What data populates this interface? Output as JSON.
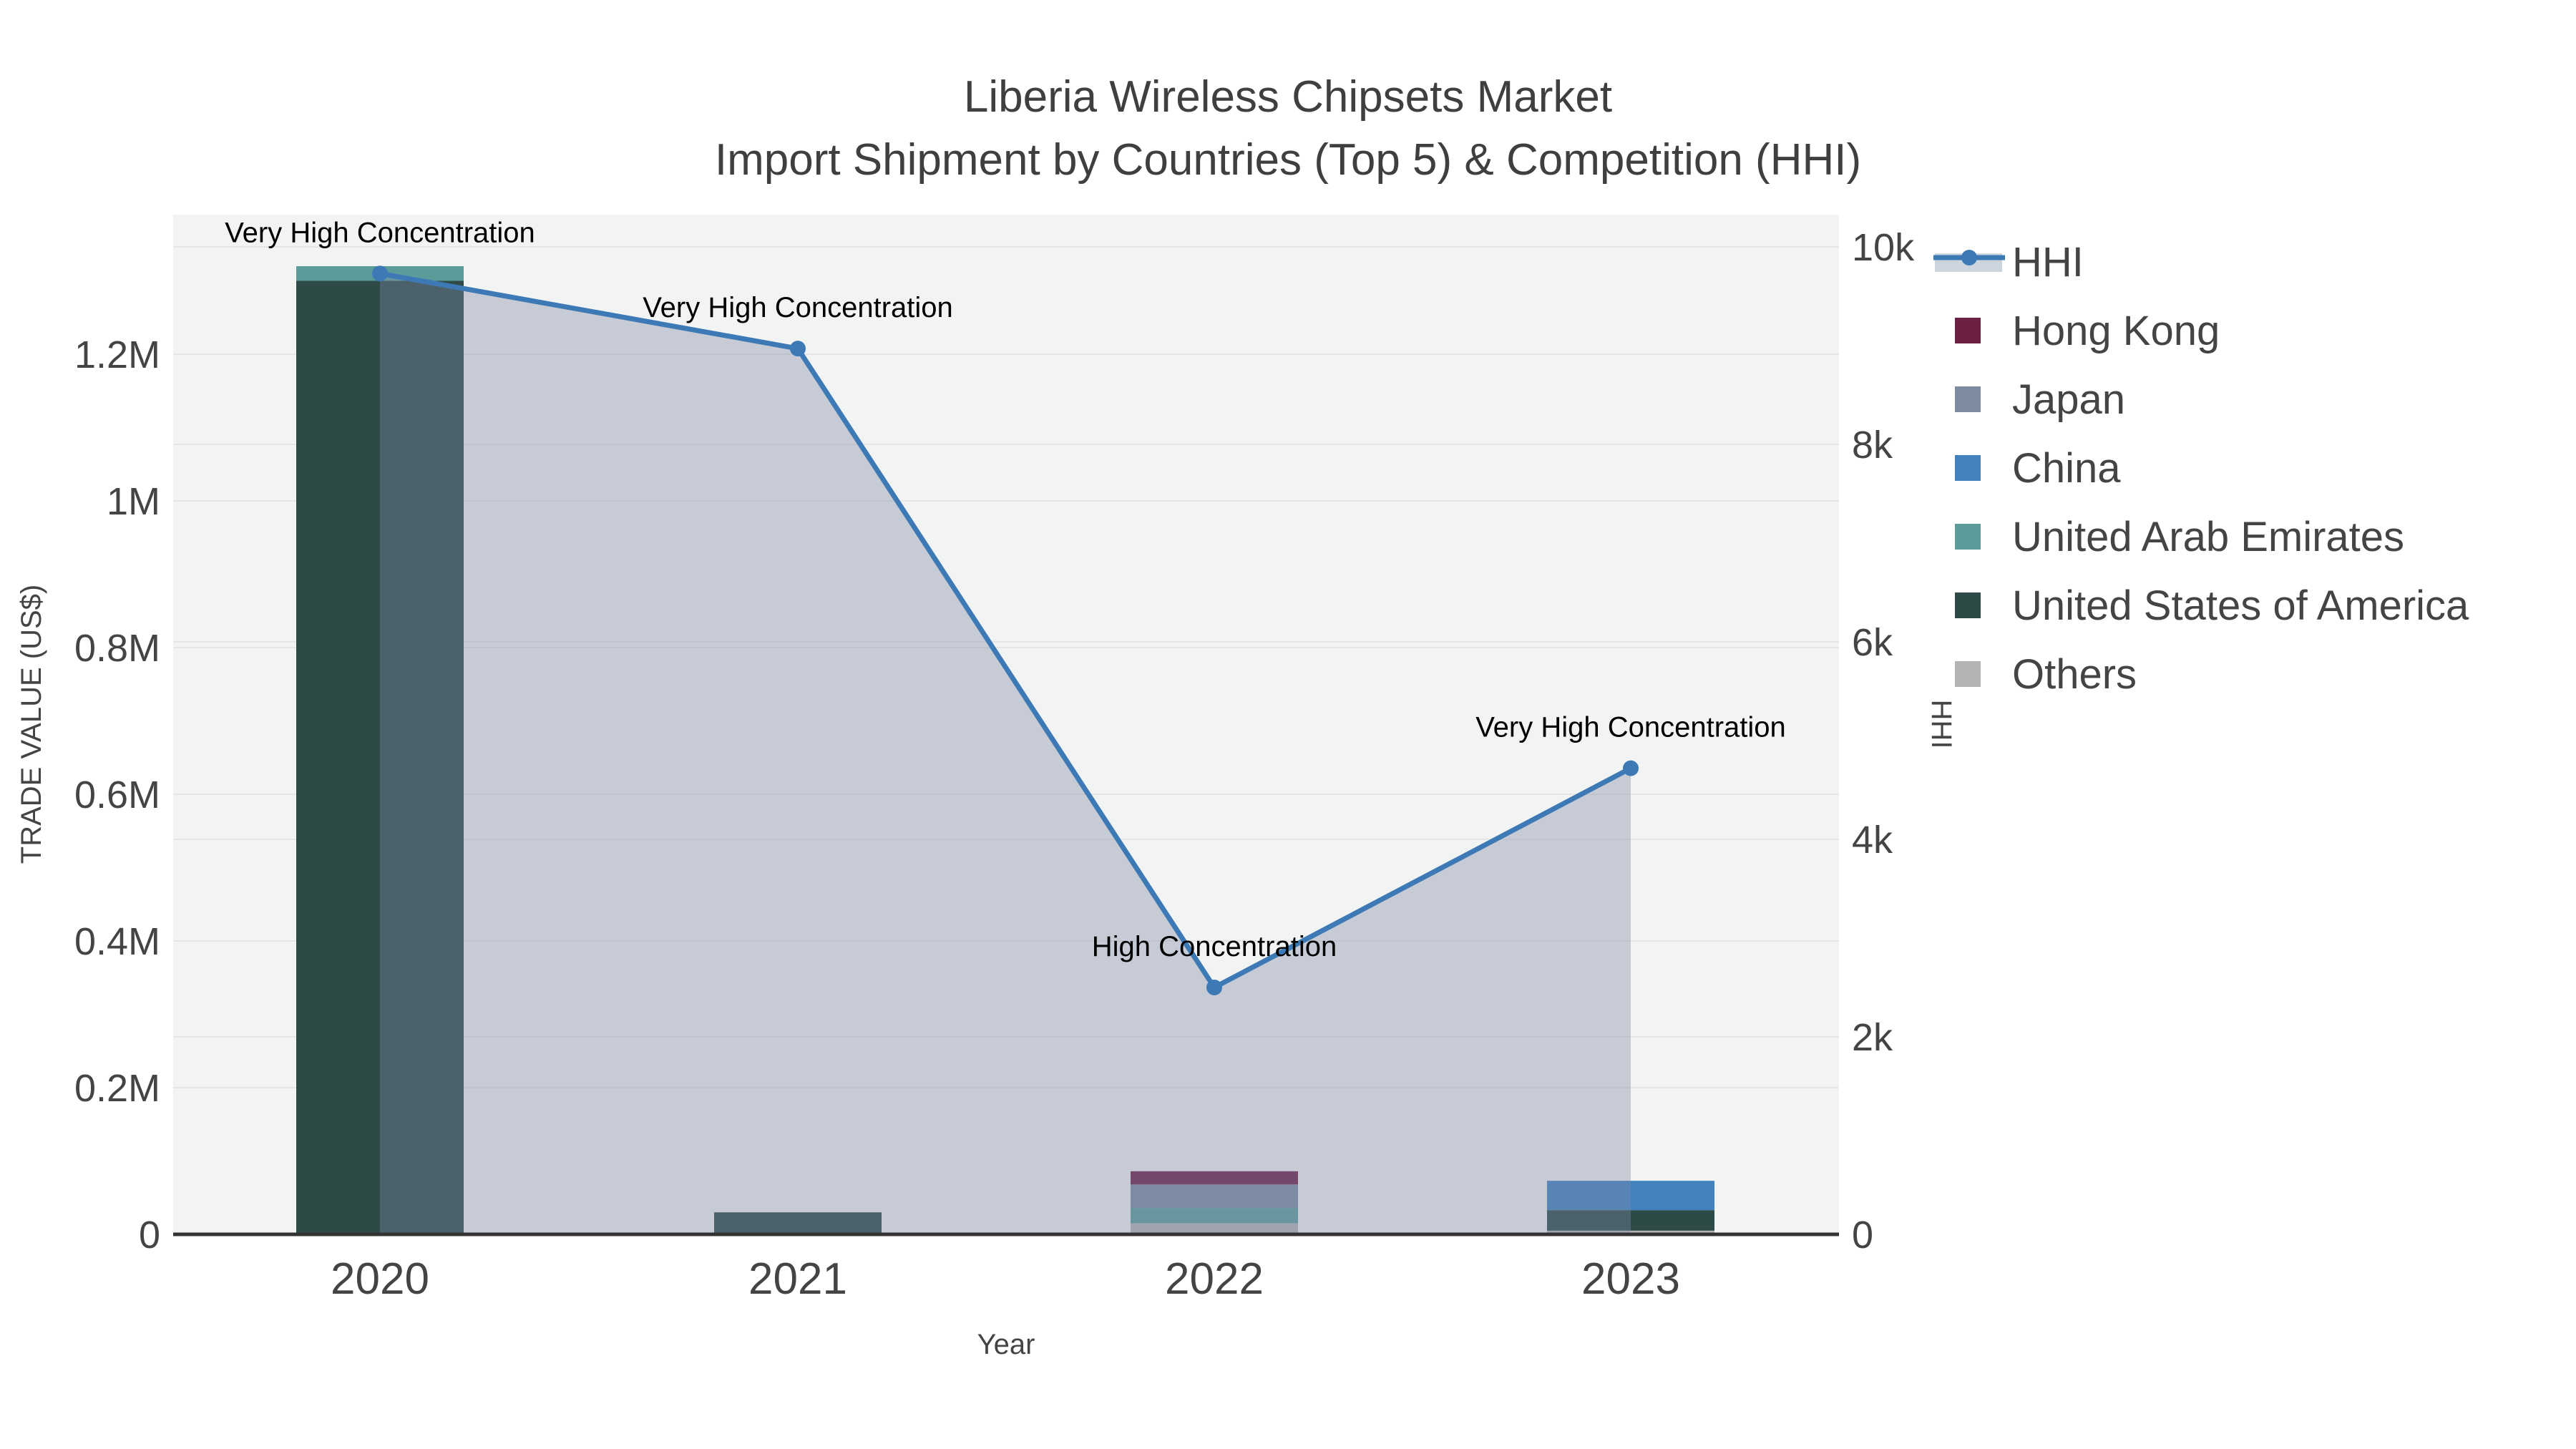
{
  "title": {
    "line1": "Liberia Wireless Chipsets Market",
    "line2": "Import Shipment by Countries (Top 5) & Competition (HHI)"
  },
  "colors": {
    "plot_background": "#f2f3f3",
    "gridline": "#e5e5e5",
    "axis_line": "#333333",
    "tick_text": "#444444",
    "annotation_text": "#000000",
    "hhi_line": "#3d7ab5",
    "hhi_area_fill": "rgba(125,140,169,0.38)",
    "hhi_legend_band": "#ccd4dd"
  },
  "chart_data": {
    "type": "bar+line",
    "categories": [
      "2020",
      "2021",
      "2022",
      "2023"
    ],
    "series": [
      {
        "name": "Others",
        "color": "#b3b3b3",
        "values": [
          0,
          0,
          15000,
          5000
        ]
      },
      {
        "name": "United States of America",
        "color": "#2d4a47",
        "values": [
          1300000,
          30000,
          0,
          28000
        ]
      },
      {
        "name": "China",
        "color": "#4282bf",
        "values": [
          0,
          0,
          0,
          40000
        ]
      },
      {
        "name": "United Arab Emirates",
        "color": "#5b9b99",
        "values": [
          20000,
          0,
          21000,
          0
        ]
      },
      {
        "name": "Japan",
        "color": "#7d8aa0",
        "values": [
          0,
          0,
          32000,
          0
        ]
      },
      {
        "name": "Hong Kong",
        "color": "#6e1f44",
        "values": [
          0,
          0,
          18000,
          0
        ]
      }
    ],
    "line_series": {
      "name": "HHI",
      "values": [
        9730,
        8970,
        2500,
        4720
      ]
    },
    "annotations": [
      "Very High Concentration",
      "Very High Concentration",
      "High Concentration",
      "Very High Concentration"
    ],
    "x": {
      "title": "Year",
      "labels": [
        "2020",
        "2021",
        "2022",
        "2023"
      ]
    },
    "y_left": {
      "title": "TRADE VALUE (US$)",
      "range": [
        0,
        1390000
      ],
      "ticks": [
        {
          "value": 0,
          "label": "0"
        },
        {
          "value": 200000,
          "label": "0.2M"
        },
        {
          "value": 400000,
          "label": "0.4M"
        },
        {
          "value": 600000,
          "label": "0.6M"
        },
        {
          "value": 800000,
          "label": "0.8M"
        },
        {
          "value": 1000000,
          "label": "1M"
        },
        {
          "value": 1200000,
          "label": "1.2M"
        }
      ]
    },
    "y_right": {
      "title": "HHI",
      "range": [
        0,
        10326
      ],
      "ticks": [
        {
          "value": 0,
          "label": "0"
        },
        {
          "value": 2000,
          "label": "2k"
        },
        {
          "value": 4000,
          "label": "4k"
        },
        {
          "value": 6000,
          "label": "6k"
        },
        {
          "value": 8000,
          "label": "8k"
        },
        {
          "value": 10000,
          "label": "10k"
        }
      ]
    },
    "grid": true,
    "legend_position": "right"
  },
  "legend": {
    "items": [
      {
        "label": "HHI",
        "type": "line"
      },
      {
        "label": "Hong Kong",
        "type": "swatch",
        "color": "#6e1f44"
      },
      {
        "label": "Japan",
        "type": "swatch",
        "color": "#7d8aa0"
      },
      {
        "label": "China",
        "type": "swatch",
        "color": "#4282bf"
      },
      {
        "label": "United Arab Emirates",
        "type": "swatch",
        "color": "#5b9b99"
      },
      {
        "label": "United States of America",
        "type": "swatch",
        "color": "#2d4a47"
      },
      {
        "label": "Others",
        "type": "swatch",
        "color": "#b3b3b3"
      }
    ]
  }
}
